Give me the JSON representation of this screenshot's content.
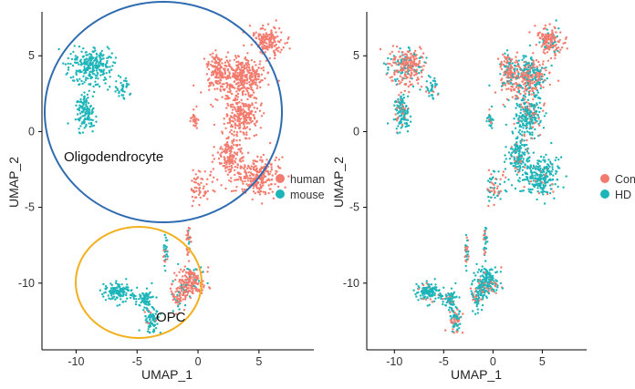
{
  "chart_data": [
    {
      "type": "scatter",
      "xlabel": "UMAP_1",
      "ylabel": "UMAP_2",
      "xlim": [
        -12.8,
        9.5
      ],
      "ylim": [
        -14.4,
        7.9
      ],
      "x_ticks": [
        -10,
        -5,
        0,
        5
      ],
      "y_ticks": [
        5,
        0,
        -5,
        -10
      ],
      "grid": false,
      "legend_position": "right",
      "series": [
        {
          "name": "human",
          "color": "#F37B6E"
        },
        {
          "name": "mouse",
          "color": "#1DB5B9"
        }
      ],
      "clusters": [
        {
          "label": "Oligodendrocyte",
          "outline_color": "#2E6BB0"
        },
        {
          "label": "OPC",
          "outline_color": "#F2B01E"
        }
      ]
    },
    {
      "type": "scatter",
      "xlabel": "UMAP_1",
      "ylabel": "UMAP_2",
      "xlim": [
        -12.8,
        9.5
      ],
      "ylim": [
        -14.4,
        7.9
      ],
      "x_ticks": [
        -10,
        -5,
        0,
        5
      ],
      "y_ticks": [
        5,
        0,
        -5,
        -10
      ],
      "grid": false,
      "legend_position": "right",
      "series": [
        {
          "name": "Con",
          "color": "#F37B6E"
        },
        {
          "name": "HD",
          "color": "#1DB5B9"
        }
      ]
    }
  ]
}
